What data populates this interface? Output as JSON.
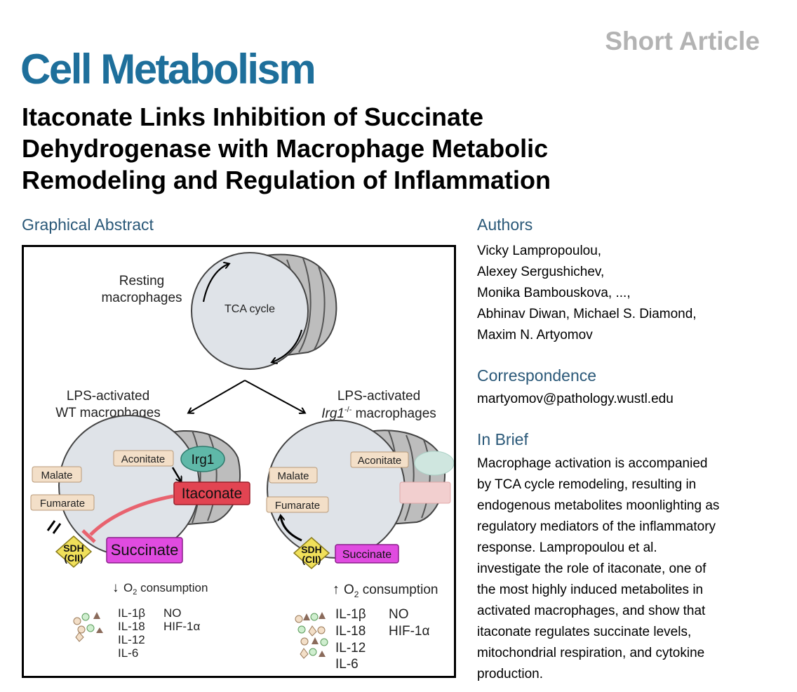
{
  "header": {
    "article_type": "Short Article",
    "journal": "Cell Metabolism",
    "title_lines": [
      "Itaconate Links Inhibition of Succinate",
      "Dehydrogenase with Macrophage Metabolic",
      "Remodeling and Regulation of Inflammation"
    ]
  },
  "graphical_abstract": {
    "heading": "Graphical Abstract",
    "resting_label": [
      "Resting",
      "macrophages"
    ],
    "tca_label": "TCA cycle",
    "wt_label": [
      "LPS-activated",
      "WT macrophages"
    ],
    "ko_label_line1": "LPS-activated",
    "ko_label_gene": "Irg1",
    "ko_label_sup": "-/-",
    "ko_label_rest": " macrophages",
    "wt": {
      "aconitate": "Aconitate",
      "irg1": "Irg1",
      "malate": "Malate",
      "fumarate": "Fumarate",
      "itaconate": "Itaconate",
      "sdh": [
        "SDH",
        "(CII)"
      ],
      "succinate": "Succinate",
      "o2": "O",
      "o2_sub": "2",
      "o2_text": " consumption",
      "cytokines_col1": [
        "IL-1β",
        "IL-18",
        "IL-12",
        "IL-6"
      ],
      "cytokines_col2": [
        "NO",
        "HIF-1α"
      ]
    },
    "ko": {
      "aconitate": "Aconitate",
      "malate": "Malate",
      "fumarate": "Fumarate",
      "sdh": [
        "SDH",
        "(CII)"
      ],
      "succinate": "Succinate",
      "o2": "O",
      "o2_sub": "2",
      "o2_text": " consumption",
      "cytokines_col1": [
        "IL-1β",
        "IL-18",
        "IL-12",
        "IL-6"
      ],
      "cytokines_col2": [
        "NO",
        "HIF-1α"
      ]
    }
  },
  "authors": {
    "heading": "Authors",
    "lines": [
      "Vicky Lampropoulou,",
      "Alexey Sergushichev,",
      "Monika Bambouskova, ...,",
      "Abhinav Diwan, Michael S. Diamond,",
      "Maxim N. Artyomov"
    ]
  },
  "correspondence": {
    "heading": "Correspondence",
    "email": "martyomov@pathology.wustl.edu"
  },
  "in_brief": {
    "heading": "In Brief",
    "lines": [
      "Macrophage activation is accompanied",
      "by TCA cycle remodeling, resulting in",
      "endogenous metabolites moonlighting as",
      "regulatory mediators of the inflammatory",
      "response. Lampropoulou et al.",
      "investigate the role of itaconate, one of",
      "the most highly induced metabolites in",
      "activated macrophages, and show that",
      "itaconate regulates succinate levels,",
      "mitochondrial respiration, and cytokine",
      "production."
    ]
  },
  "colors": {
    "journal_blue": "#1e6f9b",
    "heading_blue": "#2a5878",
    "itaconate_red": "#e24452",
    "succinate_magenta": "#e04be0",
    "irg1_teal": "#5fb8a8",
    "sdh_yellow": "#f0e05a",
    "label_beige": "#f3dfc8"
  }
}
